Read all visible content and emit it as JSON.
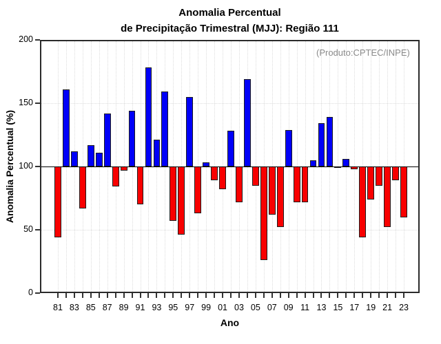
{
  "title": {
    "line1": "Anomalia Percentual",
    "line2": "de Precipitação Trimestral (MJJ): Região 111"
  },
  "watermark": "(Produto:CPTEC/INPE)",
  "axes": {
    "y_label": "Anomalia Percentual (%)",
    "x_label": "Ano",
    "y_tick_labels": [
      "0",
      "50",
      "100",
      "150",
      "200"
    ],
    "y_tick_values": [
      0,
      50,
      100,
      150,
      200
    ],
    "x_label_every": 2
  },
  "colors": {
    "above_baseline": "#0000f8",
    "below_baseline": "#f80000",
    "bar_border": "#1c1c1c",
    "grid": "#dcdcdc",
    "baseline": "#000000",
    "watermark_text": "#8a8a8a"
  },
  "chart_data": {
    "type": "bar",
    "title": "Anomalia Percentual de Precipitação Trimestral (MJJ): Região 111",
    "xlabel": "Ano",
    "ylabel": "Anomalia Percentual (%)",
    "ylim": [
      0,
      200
    ],
    "baseline": 100,
    "grid_y": [
      50,
      150
    ],
    "legend": "none",
    "annotation": "(Produto:CPTEC/INPE)",
    "categories": [
      "81",
      "82",
      "83",
      "84",
      "85",
      "86",
      "87",
      "88",
      "89",
      "90",
      "91",
      "92",
      "93",
      "94",
      "95",
      "96",
      "97",
      "98",
      "99",
      "00",
      "01",
      "02",
      "03",
      "04",
      "05",
      "06",
      "07",
      "08",
      "09",
      "10",
      "11",
      "12",
      "13",
      "14",
      "15",
      "16",
      "17",
      "18",
      "19",
      "20",
      "21",
      "22",
      "23"
    ],
    "values": [
      44,
      161,
      112,
      67,
      117,
      111,
      142,
      84,
      97,
      144,
      70,
      178,
      121,
      159,
      57,
      46,
      155,
      63,
      103,
      89,
      82,
      128,
      72,
      169,
      85,
      26,
      62,
      52,
      129,
      72,
      72,
      105,
      134,
      139,
      99,
      106,
      98,
      44,
      74,
      85,
      52,
      89,
      60
    ]
  }
}
